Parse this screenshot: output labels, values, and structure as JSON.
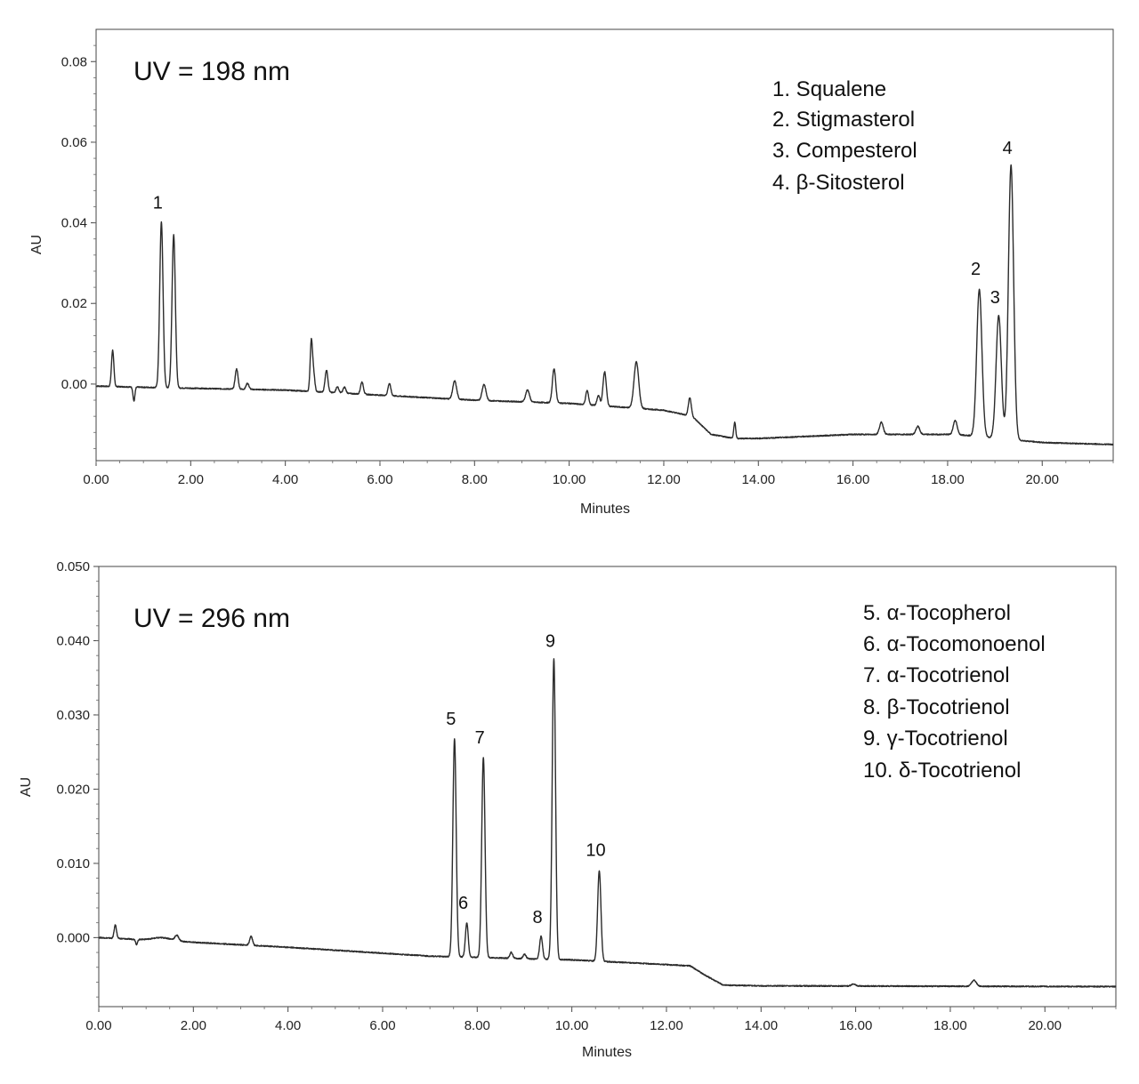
{
  "chart_data": [
    {
      "type": "line",
      "title": "UV = 198 nm",
      "xlabel": "Minutes",
      "ylabel": "AU",
      "xlim": [
        0,
        21.5
      ],
      "ylim": [
        -0.019,
        0.088
      ],
      "grid": false,
      "xticks": [
        0,
        2,
        4,
        6,
        8,
        10,
        12,
        14,
        16,
        18,
        20
      ],
      "xtick_labels": [
        "0.00",
        "2.00",
        "4.00",
        "6.00",
        "8.00",
        "10.00",
        "12.00",
        "14.00",
        "16.00",
        "18.00",
        "20.00"
      ],
      "yticks": [
        0,
        0.02,
        0.04,
        0.06,
        0.08
      ],
      "ytick_labels": [
        "0.00",
        "0.02",
        "0.04",
        "0.06",
        "0.08"
      ],
      "legend_position": "top-right",
      "legend": [
        "1. Squalene",
        "2. Stigmasterol",
        "3. Compesterol",
        "4. β-Sitosterol"
      ],
      "peak_labels": [
        {
          "label": "1",
          "x": 1.38,
          "y": 0.0405
        },
        {
          "label": "2",
          "x": 18.67,
          "y": 0.024
        },
        {
          "label": "3",
          "x": 19.08,
          "y": 0.017
        },
        {
          "label": "4",
          "x": 19.34,
          "y": 0.054
        }
      ],
      "baseline": [
        [
          0,
          -0.0005
        ],
        [
          1.0,
          -0.0008
        ],
        [
          4.0,
          -0.0015
        ],
        [
          8.0,
          -0.004
        ],
        [
          10.0,
          -0.0048
        ],
        [
          12.0,
          -0.0065
        ],
        [
          12.6,
          -0.008
        ],
        [
          13.0,
          -0.0125
        ],
        [
          13.5,
          -0.0135
        ],
        [
          14.0,
          -0.0135
        ],
        [
          16.0,
          -0.0125
        ],
        [
          18.2,
          -0.0125
        ],
        [
          20.0,
          -0.0145
        ],
        [
          21.5,
          -0.015
        ]
      ],
      "peaks": [
        {
          "x": 0.35,
          "h": 0.009,
          "w": 0.025
        },
        {
          "x": 0.8,
          "h": -0.0035,
          "w": 0.02
        },
        {
          "x": 1.38,
          "h": 0.041,
          "w": 0.035
        },
        {
          "x": 1.64,
          "h": 0.038,
          "w": 0.035
        },
        {
          "x": 2.97,
          "h": 0.005,
          "w": 0.03
        },
        {
          "x": 3.2,
          "h": 0.0015,
          "w": 0.03
        },
        {
          "x": 4.55,
          "h": 0.0125,
          "w": 0.025
        },
        {
          "x": 4.6,
          "h": 0.004,
          "w": 0.025
        },
        {
          "x": 4.87,
          "h": 0.0055,
          "w": 0.03
        },
        {
          "x": 5.1,
          "h": 0.0015,
          "w": 0.03
        },
        {
          "x": 5.25,
          "h": 0.0015,
          "w": 0.03
        },
        {
          "x": 5.62,
          "h": 0.003,
          "w": 0.03
        },
        {
          "x": 6.2,
          "h": 0.003,
          "w": 0.03
        },
        {
          "x": 7.58,
          "h": 0.0045,
          "w": 0.04
        },
        {
          "x": 8.2,
          "h": 0.004,
          "w": 0.04
        },
        {
          "x": 9.12,
          "h": 0.003,
          "w": 0.04
        },
        {
          "x": 9.68,
          "h": 0.0085,
          "w": 0.035
        },
        {
          "x": 10.38,
          "h": 0.0035,
          "w": 0.03
        },
        {
          "x": 10.62,
          "h": 0.0025,
          "w": 0.03
        },
        {
          "x": 10.75,
          "h": 0.0085,
          "w": 0.035
        },
        {
          "x": 11.42,
          "h": 0.0115,
          "w": 0.05
        },
        {
          "x": 12.55,
          "h": 0.0045,
          "w": 0.03
        },
        {
          "x": 13.5,
          "h": 0.004,
          "w": 0.02
        },
        {
          "x": 16.6,
          "h": 0.003,
          "w": 0.04
        },
        {
          "x": 17.37,
          "h": 0.002,
          "w": 0.04
        },
        {
          "x": 18.16,
          "h": 0.0035,
          "w": 0.04
        },
        {
          "x": 18.67,
          "h": 0.0365,
          "w": 0.055
        },
        {
          "x": 19.08,
          "h": 0.0305,
          "w": 0.055
        },
        {
          "x": 19.34,
          "h": 0.068,
          "w": 0.055
        }
      ]
    },
    {
      "type": "line",
      "title": "UV = 296 nm",
      "xlabel": "Minutes",
      "ylabel": "AU",
      "xlim": [
        0,
        21.5
      ],
      "ylim": [
        -0.0093,
        0.05
      ],
      "grid": false,
      "xticks": [
        0,
        2,
        4,
        6,
        8,
        10,
        12,
        14,
        16,
        18,
        20
      ],
      "xtick_labels": [
        "0.00",
        "2.00",
        "4.00",
        "6.00",
        "8.00",
        "10.00",
        "12.00",
        "14.00",
        "16.00",
        "18.00",
        "20.00"
      ],
      "yticks": [
        0,
        0.01,
        0.02,
        0.03,
        0.04,
        0.05
      ],
      "ytick_labels": [
        "0.000",
        "0.010",
        "0.020",
        "0.030",
        "0.040",
        "0.050"
      ],
      "legend_position": "top-right",
      "legend": [
        "5. α-Tocopherol",
        "6. α-Tocomonoenol",
        "7. α-Tocotrienol",
        "8. β-Tocotrienol",
        "9. γ-Tocotrienol",
        "10. δ-Tocotrienol"
      ],
      "peak_labels": [
        {
          "label": "5",
          "x": 7.52,
          "y": 0.027
        },
        {
          "label": "6",
          "x": 7.78,
          "y": 0.0022
        },
        {
          "label": "7",
          "x": 8.13,
          "y": 0.0245
        },
        {
          "label": "8",
          "x": 9.35,
          "y": 0.0003
        },
        {
          "label": "9",
          "x": 9.62,
          "y": 0.0375
        },
        {
          "label": "10",
          "x": 10.58,
          "y": 0.0093
        }
      ],
      "baseline": [
        [
          0,
          0.0
        ],
        [
          1.0,
          -0.0003
        ],
        [
          4.0,
          -0.0013
        ],
        [
          7.0,
          -0.0025
        ],
        [
          10.0,
          -0.003
        ],
        [
          12.5,
          -0.0038
        ],
        [
          12.8,
          -0.005
        ],
        [
          13.2,
          -0.0064
        ],
        [
          14.0,
          -0.0065
        ],
        [
          21.5,
          -0.0066
        ]
      ],
      "peaks": [
        {
          "x": 0.35,
          "h": 0.0018,
          "w": 0.025
        },
        {
          "x": 0.8,
          "h": -0.0007,
          "w": 0.02
        },
        {
          "x": 1.35,
          "h": 0.0004,
          "w": 0.2
        },
        {
          "x": 1.65,
          "h": 0.0007,
          "w": 0.04
        },
        {
          "x": 3.22,
          "h": 0.0012,
          "w": 0.03
        },
        {
          "x": 7.52,
          "h": 0.0294,
          "w": 0.035
        },
        {
          "x": 7.78,
          "h": 0.0046,
          "w": 0.03
        },
        {
          "x": 8.13,
          "h": 0.027,
          "w": 0.035
        },
        {
          "x": 8.72,
          "h": 0.0008,
          "w": 0.03
        },
        {
          "x": 9.0,
          "h": 0.0006,
          "w": 0.03
        },
        {
          "x": 9.35,
          "h": 0.0031,
          "w": 0.03
        },
        {
          "x": 9.62,
          "h": 0.0405,
          "w": 0.035
        },
        {
          "x": 10.58,
          "h": 0.0122,
          "w": 0.035
        },
        {
          "x": 15.95,
          "h": 0.0003,
          "w": 0.04
        },
        {
          "x": 18.5,
          "h": 0.0008,
          "w": 0.05
        }
      ]
    }
  ]
}
